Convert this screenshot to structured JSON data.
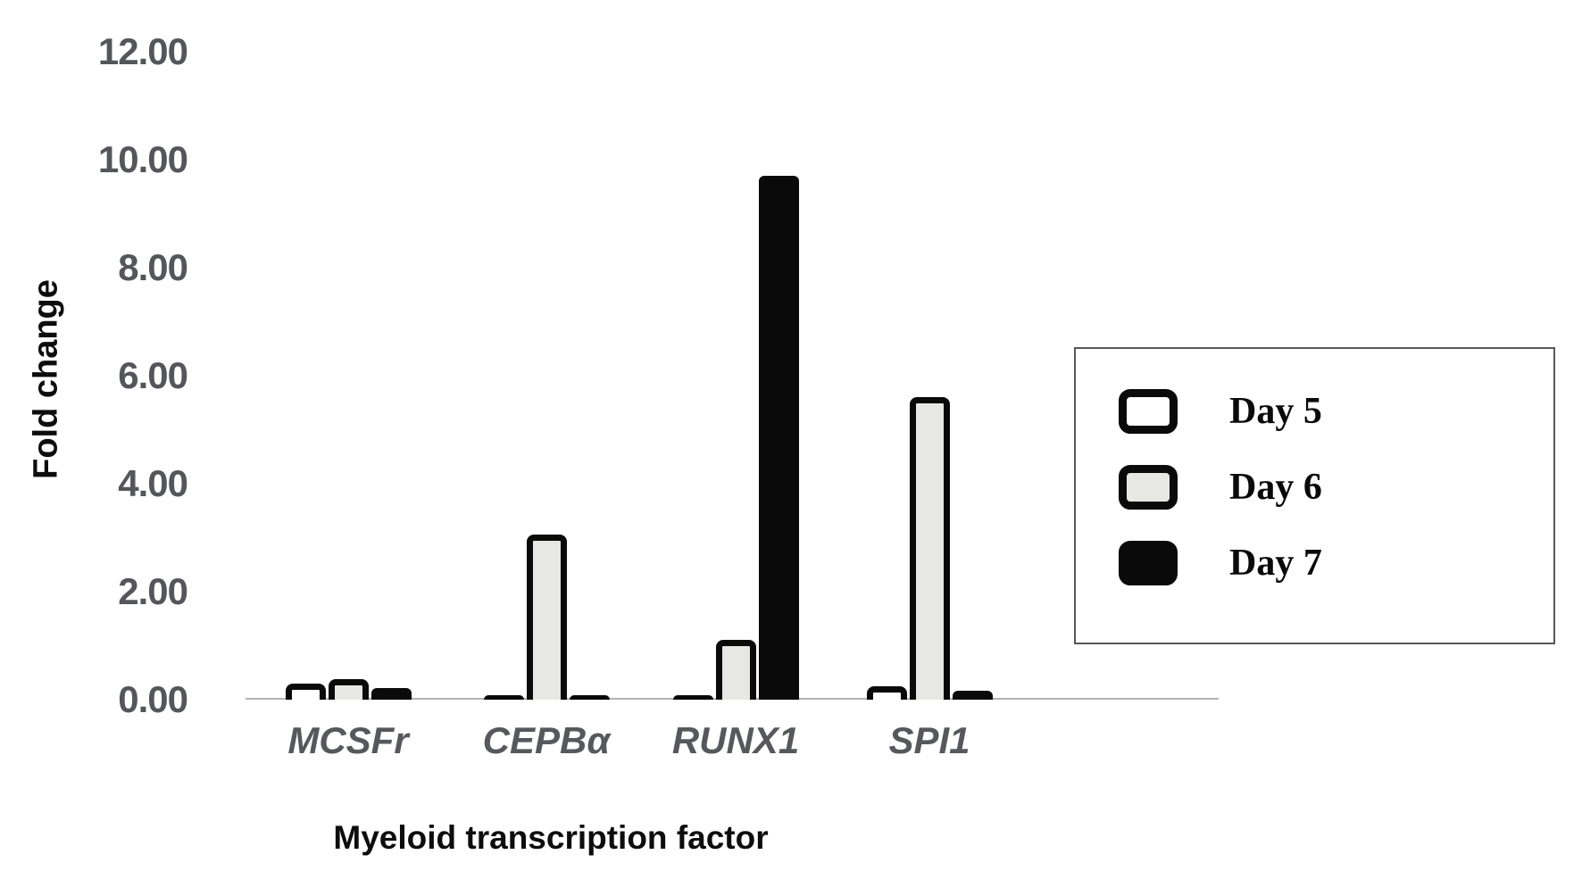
{
  "chart_data": {
    "type": "bar",
    "title": "",
    "xlabel": "Myeloid transcription factor",
    "ylabel": "Fold change",
    "categories": [
      "MCSFr",
      "CEPBα",
      "RUNX1",
      "SPI1"
    ],
    "series": [
      {
        "name": "Day 5",
        "fill": "#ffffff",
        "values": [
          0.3,
          0.08,
          0.08,
          0.25
        ]
      },
      {
        "name": "Day 6",
        "fill": "#e7e7e4",
        "values": [
          0.38,
          3.05,
          1.1,
          5.6
        ]
      },
      {
        "name": "Day 7",
        "fill": "#0a0a0a",
        "values": [
          0.21,
          0.08,
          9.7,
          0.16
        ]
      }
    ],
    "ylim": [
      0,
      12
    ],
    "yticks": [
      "0.00",
      "2.00",
      "4.00",
      "6.00",
      "8.00",
      "10.00",
      "12.00"
    ],
    "grid": false,
    "legend_position": "right",
    "bar_outline_color": "#0a0a0a"
  },
  "colors": {
    "axis_line": "#b3b3b3",
    "tick_text": "#55565a",
    "category_text": "#57585c",
    "axis_title_text": "#0d0d0d",
    "legend_border": "#58585a"
  }
}
